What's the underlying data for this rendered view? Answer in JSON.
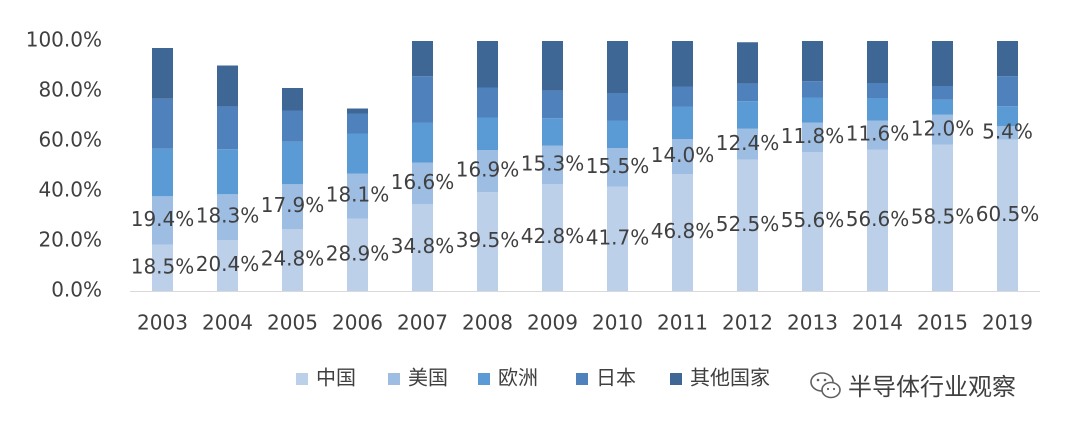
{
  "chart_data": {
    "type": "stacked-bar",
    "categories": [
      "2003",
      "2004",
      "2005",
      "2006",
      "2007",
      "2008",
      "2009",
      "2010",
      "2011",
      "2012",
      "2013",
      "2014",
      "2015",
      "2019"
    ],
    "ylim": [
      0,
      100
    ],
    "yticks": [
      "0.0%",
      "20.0%",
      "40.0%",
      "60.0%",
      "80.0%",
      "100.0%"
    ],
    "series": [
      {
        "name": "中国",
        "color": "#bdd0ea",
        "values": [
          18.5,
          20.4,
          24.8,
          28.9,
          34.8,
          39.5,
          42.8,
          41.7,
          46.8,
          52.5,
          55.6,
          56.6,
          58.5,
          60.5
        ],
        "labels": [
          "18.5%",
          "20.4%",
          "24.8%",
          "28.9%",
          "34.8%",
          "39.5%",
          "42.8%",
          "41.7%",
          "46.8%",
          "52.5%",
          "55.6%",
          "56.6%",
          "58.5%",
          "60.5%"
        ]
      },
      {
        "name": "美国",
        "color": "#9dbde3",
        "values": [
          19.4,
          18.3,
          17.9,
          18.1,
          16.6,
          16.9,
          15.3,
          15.5,
          14.0,
          12.4,
          11.8,
          11.6,
          12.0,
          5.4
        ],
        "labels": [
          "19.4%",
          "18.3%",
          "17.9%",
          "18.1%",
          "16.6%",
          "16.9%",
          "15.3%",
          "15.5%",
          "14.0%",
          "12.4%",
          "11.8%",
          "11.6%",
          "12.0%",
          "5.4%"
        ]
      },
      {
        "name": "欧洲",
        "color": "#5b9bd5",
        "values": [
          19.0,
          18.0,
          17.0,
          16.0,
          16.0,
          13.0,
          11.0,
          11.0,
          13.0,
          11.0,
          10.0,
          9.0,
          6.0,
          8.0
        ]
      },
      {
        "name": "日本",
        "color": "#4f81bd",
        "values": [
          20.0,
          17.0,
          12.5,
          8.0,
          18.5,
          12.0,
          11.0,
          11.0,
          8.0,
          7.0,
          6.5,
          6.0,
          5.5,
          12.0
        ]
      },
      {
        "name": "其他国家",
        "color": "#3f6796",
        "values": [
          20.3,
          16.5,
          9.0,
          2.0,
          14.1,
          18.6,
          19.9,
          20.8,
          18.2,
          16.6,
          16.1,
          16.8,
          18.0,
          14.1
        ]
      }
    ]
  },
  "watermark": {
    "text": "半导体行业观察",
    "icon": "wechat-icon"
  }
}
